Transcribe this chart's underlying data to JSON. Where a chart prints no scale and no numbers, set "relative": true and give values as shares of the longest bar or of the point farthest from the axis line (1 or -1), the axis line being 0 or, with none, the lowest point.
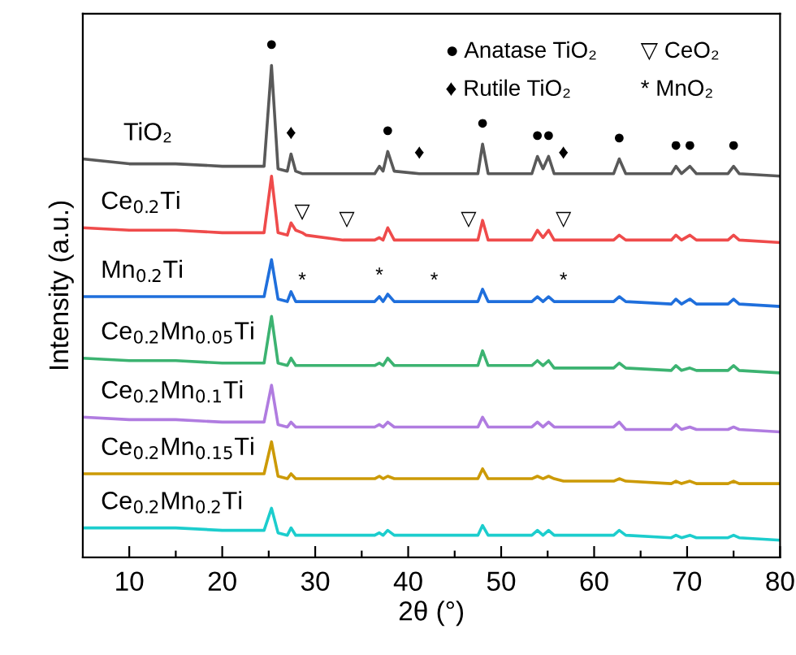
{
  "chart_data": {
    "type": "line",
    "relative": true,
    "xlabel": "2θ (°)",
    "ylabel": "Intensity (a.u.)",
    "xlim": [
      5,
      80
    ],
    "xticks": [
      10,
      {
        "value": 15,
        "label": null
      },
      20,
      {
        "value": 25,
        "label": null
      },
      30,
      {
        "value": 35,
        "label": null
      },
      40,
      {
        "value": 45,
        "label": null
      },
      50,
      {
        "value": 55,
        "label": null
      },
      60,
      {
        "value": 65,
        "label": null
      },
      70,
      {
        "value": 75,
        "label": null
      },
      80
    ],
    "grid": false,
    "legend": false,
    "marker": "none",
    "line_style": "solid",
    "x": [
      5,
      10,
      15,
      20,
      24.5,
      25.3,
      26.0,
      27.0,
      27.4,
      27.9,
      28.6,
      29,
      33,
      33.4,
      36.4,
      36.9,
      37.3,
      37.8,
      38.5,
      41.2,
      42.8,
      45,
      46.5,
      47.5,
      48.0,
      48.6,
      53.3,
      53.9,
      54.5,
      55.1,
      55.7,
      56.7,
      60,
      62.1,
      62.7,
      63.4,
      68.3,
      68.8,
      69.4,
      70.3,
      71,
      74.4,
      75.0,
      75.6,
      80
    ],
    "series": [
      {
        "name": "TiO₂",
        "color": "#595959",
        "values": [
          0.81,
          0.8,
          0.8,
          0.795,
          0.795,
          1,
          0.79,
          0.785,
          0.82,
          0.785,
          0.78,
          0.78,
          0.78,
          0.78,
          0.78,
          0.795,
          0.785,
          0.825,
          0.785,
          0.78,
          0.78,
          0.78,
          0.78,
          0.78,
          0.84,
          0.78,
          0.78,
          0.815,
          0.79,
          0.815,
          0.78,
          0.78,
          0.78,
          0.78,
          0.81,
          0.78,
          0.78,
          0.795,
          0.78,
          0.795,
          0.78,
          0.78,
          0.795,
          0.78,
          0.775
        ]
      },
      {
        "name": "Ce$_{0.2}$Ti",
        "color": "#ef4b4b",
        "values": [
          0.67,
          0.665,
          0.665,
          0.66,
          0.66,
          0.775,
          0.66,
          0.655,
          0.68,
          0.665,
          0.66,
          0.655,
          0.645,
          0.645,
          0.645,
          0.65,
          0.645,
          0.67,
          0.645,
          0.645,
          0.645,
          0.645,
          0.645,
          0.645,
          0.685,
          0.645,
          0.645,
          0.665,
          0.65,
          0.665,
          0.645,
          0.645,
          0.645,
          0.645,
          0.655,
          0.645,
          0.645,
          0.655,
          0.645,
          0.655,
          0.645,
          0.645,
          0.655,
          0.645,
          0.64
        ]
      },
      {
        "name": "Mn$_{0.2}$Ti",
        "color": "#1f6fdc",
        "values": [
          0.53,
          0.53,
          0.53,
          0.53,
          0.53,
          0.605,
          0.525,
          0.52,
          0.54,
          0.52,
          0.52,
          0.52,
          0.52,
          0.52,
          0.52,
          0.53,
          0.52,
          0.535,
          0.52,
          0.52,
          0.52,
          0.52,
          0.52,
          0.52,
          0.545,
          0.52,
          0.52,
          0.53,
          0.52,
          0.53,
          0.52,
          0.52,
          0.52,
          0.52,
          0.53,
          0.52,
          0.515,
          0.525,
          0.515,
          0.525,
          0.515,
          0.515,
          0.525,
          0.515,
          0.51
        ]
      },
      {
        "name": "Ce$_{0.2}$Mn$_{0.05}$Ti",
        "color": "#3cb371",
        "values": [
          0.405,
          0.4,
          0.4,
          0.395,
          0.395,
          0.49,
          0.395,
          0.39,
          0.405,
          0.39,
          0.39,
          0.39,
          0.39,
          0.39,
          0.39,
          0.395,
          0.39,
          0.405,
          0.39,
          0.39,
          0.39,
          0.39,
          0.39,
          0.39,
          0.42,
          0.39,
          0.39,
          0.4,
          0.39,
          0.4,
          0.385,
          0.385,
          0.385,
          0.385,
          0.395,
          0.385,
          0.38,
          0.39,
          0.38,
          0.385,
          0.38,
          0.38,
          0.39,
          0.38,
          0.375
        ]
      },
      {
        "name": "Ce$_{0.2}$Mn$_{0.1}$Ti",
        "color": "#b07ce0",
        "values": [
          0.285,
          0.28,
          0.28,
          0.275,
          0.275,
          0.35,
          0.27,
          0.265,
          0.275,
          0.265,
          0.265,
          0.265,
          0.265,
          0.265,
          0.265,
          0.27,
          0.265,
          0.275,
          0.265,
          0.265,
          0.265,
          0.265,
          0.265,
          0.265,
          0.285,
          0.265,
          0.265,
          0.275,
          0.265,
          0.275,
          0.265,
          0.265,
          0.265,
          0.265,
          0.275,
          0.26,
          0.26,
          0.27,
          0.26,
          0.265,
          0.26,
          0.26,
          0.265,
          0.26,
          0.255
        ]
      },
      {
        "name": "Ce$_{0.2}$Mn$_{0.15}$Ti",
        "color": "#cc9a06",
        "values": [
          0.17,
          0.17,
          0.17,
          0.17,
          0.17,
          0.235,
          0.165,
          0.16,
          0.17,
          0.16,
          0.16,
          0.16,
          0.16,
          0.16,
          0.16,
          0.165,
          0.16,
          0.165,
          0.16,
          0.16,
          0.16,
          0.16,
          0.16,
          0.16,
          0.18,
          0.16,
          0.16,
          0.165,
          0.16,
          0.165,
          0.16,
          0.155,
          0.155,
          0.155,
          0.16,
          0.155,
          0.15,
          0.155,
          0.15,
          0.155,
          0.15,
          0.15,
          0.155,
          0.15,
          0.15
        ]
      },
      {
        "name": "Ce$_{0.2}$Mn$_{0.2}$Ti",
        "color": "#1ccdcd",
        "values": [
          0.06,
          0.06,
          0.06,
          0.055,
          0.055,
          0.1,
          0.05,
          0.045,
          0.06,
          0.045,
          0.045,
          0.045,
          0.045,
          0.045,
          0.045,
          0.05,
          0.045,
          0.055,
          0.045,
          0.045,
          0.045,
          0.045,
          0.045,
          0.045,
          0.065,
          0.045,
          0.045,
          0.055,
          0.045,
          0.055,
          0.045,
          0.045,
          0.045,
          0.045,
          0.055,
          0.045,
          0.04,
          0.045,
          0.04,
          0.045,
          0.04,
          0.04,
          0.045,
          0.04,
          0.035
        ]
      }
    ],
    "annotations": [
      "● Anatase TiO₂",
      "♦ Rutile TiO₂",
      "▽ CeO₂",
      "* MnO₂",
      {
        "text": "●",
        "x": 25.3,
        "y": 1
      },
      {
        "text": "●",
        "x": 37.8,
        "y": 0.825
      },
      {
        "text": "●",
        "x": 48.0,
        "y": 0.84
      },
      {
        "text": "●",
        "x": 53.9,
        "y": 0.815
      },
      {
        "text": "●",
        "x": 55.1,
        "y": 0.815
      },
      {
        "text": "●",
        "x": 62.7,
        "y": 0.81
      },
      {
        "text": "●",
        "x": 68.8,
        "y": 0.795
      },
      {
        "text": "●",
        "x": 70.3,
        "y": 0.795
      },
      {
        "text": "●",
        "x": 75.0,
        "y": 0.795
      },
      {
        "text": "♦",
        "x": 27.4,
        "y": 0.82
      },
      {
        "text": "♦",
        "x": 41.2,
        "y": 0.78
      },
      {
        "text": "♦",
        "x": 56.7,
        "y": 0.78
      },
      {
        "text": "▽",
        "x": 28.6,
        "y": 0.66
      },
      {
        "text": "▽",
        "x": 33.4,
        "y": 0.645
      },
      {
        "text": "▽",
        "x": 46.5,
        "y": 0.645
      },
      {
        "text": "▽",
        "x": 56.7,
        "y": 0.645
      },
      {
        "text": "*",
        "x": 28.6,
        "y": 0.52
      },
      {
        "text": "*",
        "x": 36.9,
        "y": 0.53
      },
      {
        "text": "*",
        "x": 42.8,
        "y": 0.52
      },
      {
        "text": "*",
        "x": 56.7,
        "y": 0.52
      }
    ]
  }
}
